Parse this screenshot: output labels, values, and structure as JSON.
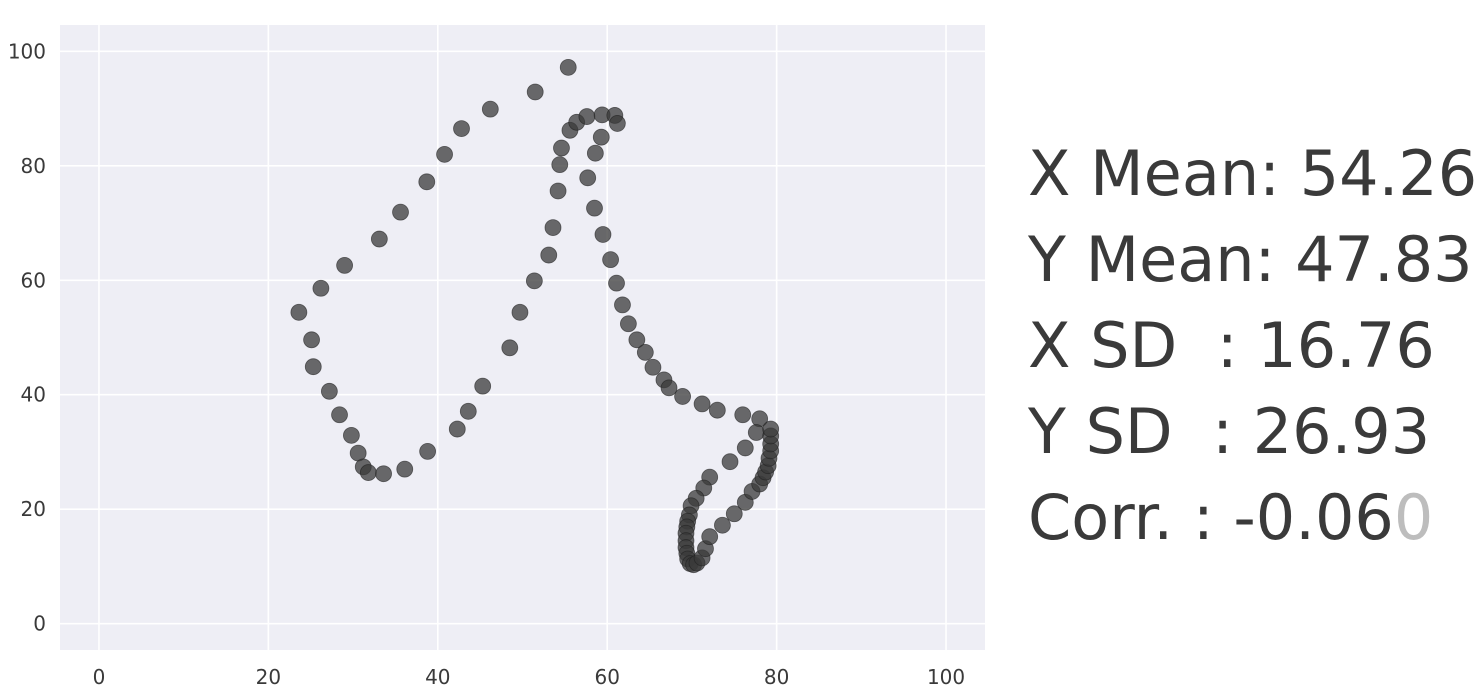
{
  "chart_data": {
    "type": "scatter",
    "title": "",
    "xlabel": "",
    "ylabel": "",
    "xlim": [
      -4.6,
      104.6
    ],
    "ylim": [
      -4.6,
      104.6
    ],
    "x_ticks": [
      "0",
      "20",
      "40",
      "60",
      "80",
      "100"
    ],
    "y_ticks": [
      "0",
      "20",
      "40",
      "60",
      "80",
      "100"
    ],
    "grid": true,
    "background": "#eeeef5",
    "point_color": "#3a3a3a",
    "series": [
      {
        "x": [
          55.4,
          51.5,
          46.2,
          42.8,
          40.8,
          38.7,
          35.6,
          33.1,
          29.0,
          26.2,
          23.6,
          25.1,
          25.3,
          27.2,
          28.4,
          29.8,
          30.6,
          31.2,
          31.8,
          33.6,
          36.1,
          38.8,
          42.3,
          43.6,
          45.3,
          48.5,
          49.7,
          51.4,
          53.1,
          53.6,
          54.2,
          54.4,
          54.6,
          55.6,
          56.4,
          57.6,
          59.4,
          60.9,
          61.2,
          59.3,
          58.6,
          57.7,
          58.5,
          59.5,
          60.4,
          61.1,
          61.8,
          62.5,
          63.5,
          64.5,
          65.4,
          66.7,
          67.3,
          68.9,
          71.2,
          73.0,
          76.0,
          78.0,
          77.6,
          76.3,
          74.5,
          72.1,
          71.4,
          70.5,
          69.9,
          69.7,
          69.5,
          69.4,
          69.3,
          69.3,
          69.3,
          69.4,
          69.5,
          69.8,
          70.2,
          70.6,
          71.2,
          71.6,
          72.1,
          73.6,
          75.0,
          76.3,
          77.1,
          78.0,
          78.4,
          78.7,
          79.0,
          79.1,
          79.3,
          79.3,
          79.3,
          79.3
        ],
        "y": [
          97.2,
          92.9,
          89.9,
          86.5,
          82.0,
          77.2,
          71.9,
          67.2,
          62.6,
          58.6,
          54.4,
          49.6,
          44.9,
          40.6,
          36.5,
          32.9,
          29.8,
          27.4,
          26.4,
          26.2,
          27.0,
          30.1,
          34.0,
          37.1,
          41.5,
          48.2,
          54.4,
          59.9,
          64.4,
          69.2,
          75.6,
          80.2,
          83.1,
          86.2,
          87.6,
          88.6,
          88.9,
          88.8,
          87.4,
          85.0,
          82.2,
          77.9,
          72.6,
          68.0,
          63.6,
          59.5,
          55.7,
          52.4,
          49.6,
          47.4,
          44.8,
          42.6,
          41.2,
          39.7,
          38.4,
          37.3,
          36.5,
          35.8,
          33.4,
          30.7,
          28.3,
          25.6,
          23.7,
          21.9,
          20.6,
          19.0,
          17.9,
          16.9,
          15.8,
          14.5,
          13.3,
          12.3,
          11.3,
          10.5,
          10.3,
          10.6,
          11.5,
          13.1,
          15.2,
          17.2,
          19.2,
          21.2,
          23.1,
          24.4,
          25.5,
          26.5,
          27.6,
          28.9,
          30.2,
          31.4,
          32.8,
          34.0
        ]
      }
    ]
  },
  "stats": {
    "x_mean": "X Mean: 54.26",
    "y_mean": "Y Mean: 47.83",
    "x_sd": "X SD  : 16.76",
    "y_sd": "Y SD  : 26.93",
    "corr_main": "Corr. : -0.06",
    "corr_faded": "0"
  }
}
